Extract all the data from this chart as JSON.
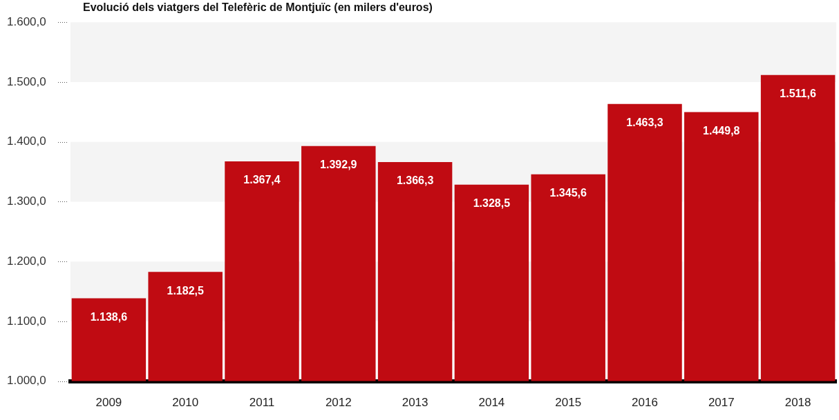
{
  "chart_data": {
    "type": "bar",
    "title": "Evolució dels viatgers del Telefèric de Montjuïc (en milers d'euros)",
    "categories": [
      "2009",
      "2010",
      "2011",
      "2012",
      "2013",
      "2014",
      "2015",
      "2016",
      "2017",
      "2018"
    ],
    "values": [
      1138.6,
      1182.5,
      1367.4,
      1392.9,
      1366.3,
      1328.5,
      1345.6,
      1463.3,
      1449.8,
      1511.6
    ],
    "value_labels": [
      "1.138,6",
      "1.182,5",
      "1.367,4",
      "1.392,9",
      "1.366,3",
      "1.328,5",
      "1.345,6",
      "1.463,3",
      "1.449,8",
      "1.511,6"
    ],
    "color": "#c00b12",
    "ylim": [
      1000,
      1600
    ],
    "yticks": [
      {
        "value": 1000,
        "label": "1.000,0"
      },
      {
        "value": 1100,
        "label": "1.100,0"
      },
      {
        "value": 1200,
        "label": "1.200,0"
      },
      {
        "value": 1300,
        "label": "1.300,0"
      },
      {
        "value": 1400,
        "label": "1.400,0"
      },
      {
        "value": 1500,
        "label": "1.500,0"
      },
      {
        "value": 1600,
        "label": "1.600,0"
      }
    ],
    "bands": [
      {
        "axis": "y",
        "from": 1100,
        "to": 1200,
        "color": "#f4f4f4"
      },
      {
        "axis": "y",
        "from": 1300,
        "to": 1400,
        "color": "#f4f4f4"
      },
      {
        "axis": "y",
        "from": 1500,
        "to": 1600,
        "color": "#f4f4f4"
      }
    ]
  }
}
